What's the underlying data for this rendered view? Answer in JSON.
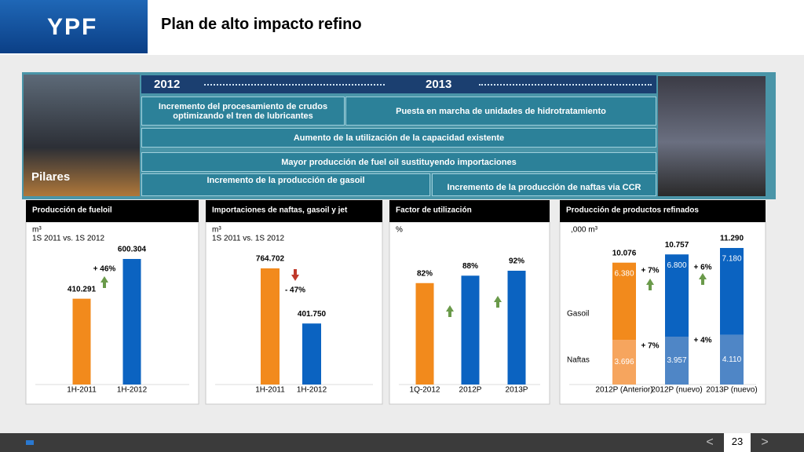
{
  "header": {
    "logo": "YPF",
    "title": "Plan de alto impacto refino"
  },
  "timeline": {
    "years": [
      "2012",
      "2013"
    ],
    "pillar_label": "Pilares",
    "rows": [
      "Incremento del procesamiento de crudos optimizando el tren de lubricantes",
      "Puesta en marcha de unidades de hidrotratamiento",
      "Aumento de la utilización de la capacidad existente",
      "Mayor producción de fuel oil sustituyendo importaciones",
      "Incremento de la producción de gasoil",
      "Incremento de la producción de naftas via CCR"
    ]
  },
  "chart_data": [
    {
      "type": "bar",
      "title": "Producción de fueloil",
      "unit": "m³",
      "subtitle": "1S 2011 vs. 1S  2012",
      "categories": [
        "1H-2011",
        "1H-2012"
      ],
      "values": [
        410291,
        600304
      ],
      "value_labels": [
        "410.291",
        "600.304"
      ],
      "colors": [
        "#f28a1c",
        "#0b63c1"
      ],
      "annotations": [
        "+ 46%"
      ]
    },
    {
      "type": "bar",
      "title": "Importaciones de naftas, gasoil y jet",
      "unit": "m³",
      "subtitle": "1S 2011 vs. 1S 2012",
      "categories": [
        "1H-2011",
        "1H-2012"
      ],
      "values": [
        764702,
        401750
      ],
      "value_labels": [
        "764.702",
        "401.750"
      ],
      "colors": [
        "#f28a1c",
        "#0b63c1"
      ],
      "annotations": [
        "- 47%"
      ]
    },
    {
      "type": "bar",
      "title": "Factor de utilización",
      "unit": "%",
      "categories": [
        "1Q-2012",
        "2012P",
        "2013P"
      ],
      "values": [
        82,
        88,
        92
      ],
      "value_labels": [
        "82%",
        "88%",
        "92%"
      ],
      "colors": [
        "#f28a1c",
        "#0b63c1",
        "#0b63c1"
      ]
    },
    {
      "type": "stacked_bar",
      "title": "Producción de productos refinados",
      "unit": ",000 m³",
      "categories": [
        "2012P (Anterior)",
        "2012P (nuevo)",
        "2013P (nuevo)"
      ],
      "series": [
        {
          "name": "Naftas",
          "values": [
            3696,
            3957,
            4110
          ],
          "value_labels": [
            "3.696",
            "3.957",
            "4.110"
          ],
          "colors": [
            "#f6a55e",
            "#4f86c6",
            "#4f86c6"
          ]
        },
        {
          "name": "Gasoil",
          "values": [
            6380,
            6800,
            7180
          ],
          "value_labels": [
            "6.380",
            "6.800",
            "7.180"
          ],
          "colors": [
            "#f28a1c",
            "#0b63c1",
            "#0b63c1"
          ]
        }
      ],
      "totals": {
        "values": [
          10076,
          10757,
          11290
        ],
        "value_labels": [
          "10.076",
          "10.757",
          "11.290"
        ]
      },
      "annotations": [
        "+ 7%",
        "+ 6%",
        "+ 7%",
        "+ 4%"
      ]
    }
  ],
  "footer": {
    "page": "23"
  }
}
